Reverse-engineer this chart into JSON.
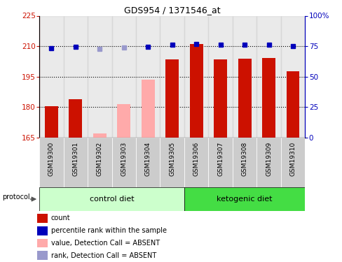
{
  "title": "GDS954 / 1371546_at",
  "samples": [
    "GSM19300",
    "GSM19301",
    "GSM19302",
    "GSM19303",
    "GSM19304",
    "GSM19305",
    "GSM19306",
    "GSM19307",
    "GSM19308",
    "GSM19309",
    "GSM19310"
  ],
  "bar_values": [
    180.5,
    184.0,
    null,
    null,
    null,
    203.5,
    211.0,
    203.5,
    203.8,
    204.2,
    197.5
  ],
  "bar_absent_values": [
    null,
    null,
    167.0,
    181.5,
    193.5,
    null,
    null,
    null,
    null,
    null,
    null
  ],
  "rank_values": [
    209.0,
    209.7,
    null,
    null,
    209.6,
    210.6,
    211.0,
    210.6,
    210.6,
    210.6,
    210.1
  ],
  "rank_absent_values": [
    null,
    null,
    208.5,
    209.2,
    null,
    null,
    null,
    null,
    null,
    null,
    null
  ],
  "ylim_left": [
    165,
    225
  ],
  "ylim_right": [
    0,
    100
  ],
  "yticks_left": [
    165,
    180,
    195,
    210,
    225
  ],
  "yticks_right": [
    0,
    25,
    50,
    75,
    100
  ],
  "ytick_labels_right": [
    "0",
    "25",
    "50",
    "75",
    "100%"
  ],
  "bar_color": "#cc1100",
  "bar_absent_color": "#ffaaaa",
  "rank_color": "#0000bb",
  "rank_absent_color": "#9999cc",
  "control_label": "control diet",
  "ketogenic_label": "ketogenic diet",
  "protocol_label": "protocol",
  "legend_items": [
    {
      "label": "count",
      "color": "#cc1100"
    },
    {
      "label": "percentile rank within the sample",
      "color": "#0000bb"
    },
    {
      "label": "value, Detection Call = ABSENT",
      "color": "#ffaaaa"
    },
    {
      "label": "rank, Detection Call = ABSENT",
      "color": "#9999cc"
    }
  ],
  "sample_area_color": "#cccccc",
  "control_bg": "#ccffcc",
  "ketogenic_bg": "#44dd44",
  "plot_bg": "#ffffff",
  "ctrl_n": 6,
  "keto_n": 5
}
